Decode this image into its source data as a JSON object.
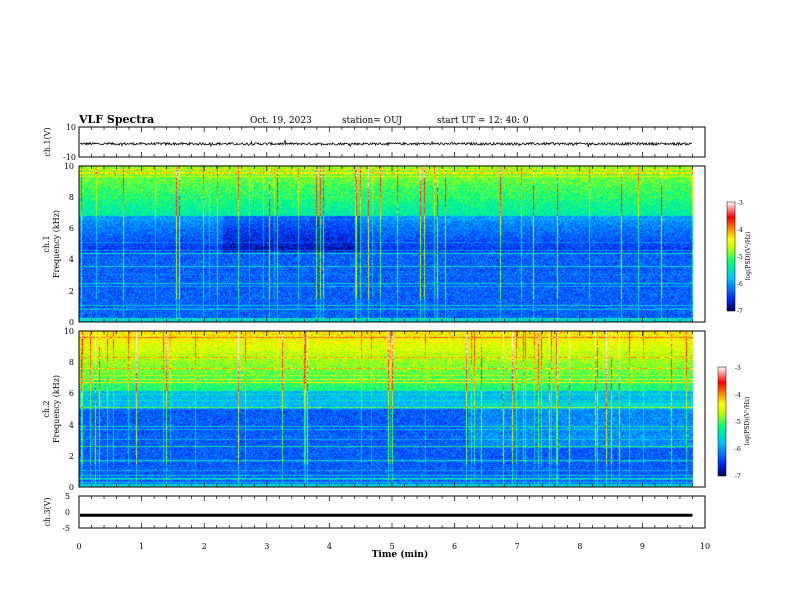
{
  "header": {
    "title": "VLF Spectra",
    "date": "Oct. 19, 2023",
    "station": "station= OUJ",
    "start": "start UT =  12: 40: 0"
  },
  "chart_data": [
    {
      "type": "line",
      "panel": "ch1-waveform",
      "ylabel": "ch.1(V)",
      "ylim": [
        -10,
        10
      ],
      "yticks": [
        10,
        -10
      ],
      "xlim": [
        0,
        10
      ],
      "description_level": -1.2,
      "series": [
        {
          "values_summary": {
            "mean": -1.2,
            "amplitude": 0.8
          }
        }
      ]
    },
    {
      "type": "heatmap",
      "panel": "ch1-spectrogram",
      "ylabel_lines": [
        "ch.1",
        "Frequency (kHz)"
      ],
      "ylim": [
        0,
        10
      ],
      "yticks": [
        0,
        2,
        4,
        6,
        8,
        10
      ],
      "xlim": [
        0,
        10
      ],
      "data_end_min": 9.8,
      "colorbar": {
        "label": "log(PSD)(V²/Hz)",
        "range": [
          -7,
          -3
        ],
        "ticks": [
          "-3",
          "-4",
          "-5",
          "-6",
          "-7"
        ],
        "colors": [
          "#000060",
          "#0030ff",
          "#00c0ff",
          "#00ff80",
          "#c0ff00",
          "#ffff00",
          "#ff8000",
          "#ff0000",
          "#ffffff"
        ]
      }
    },
    {
      "type": "heatmap",
      "panel": "ch2-spectrogram",
      "ylabel_lines": [
        "ch.2",
        "Frequency (kHz)"
      ],
      "ylim": [
        0,
        10
      ],
      "yticks": [
        0,
        2,
        4,
        6,
        8,
        10
      ],
      "xlim": [
        0,
        10
      ],
      "data_end_min": 9.8,
      "colorbar": {
        "label": "log(PSD)(V²/Hz)",
        "range": [
          -7,
          -3
        ],
        "ticks": [
          "-3",
          "-4",
          "-5",
          "-6",
          "-7"
        ]
      }
    },
    {
      "type": "line",
      "panel": "ch3-waveform",
      "ylabel": "ch.3(V)",
      "ylim": [
        -5,
        5
      ],
      "yticks": [
        5,
        0,
        -5
      ],
      "xlim": [
        0,
        10
      ],
      "xlabel": "Time (min)",
      "xticks": [
        0,
        1,
        2,
        3,
        4,
        5,
        6,
        7,
        8,
        9,
        10
      ],
      "series": [
        {
          "values_summary": {
            "mean": -1.0,
            "amplitude": 0.05
          }
        }
      ]
    }
  ]
}
